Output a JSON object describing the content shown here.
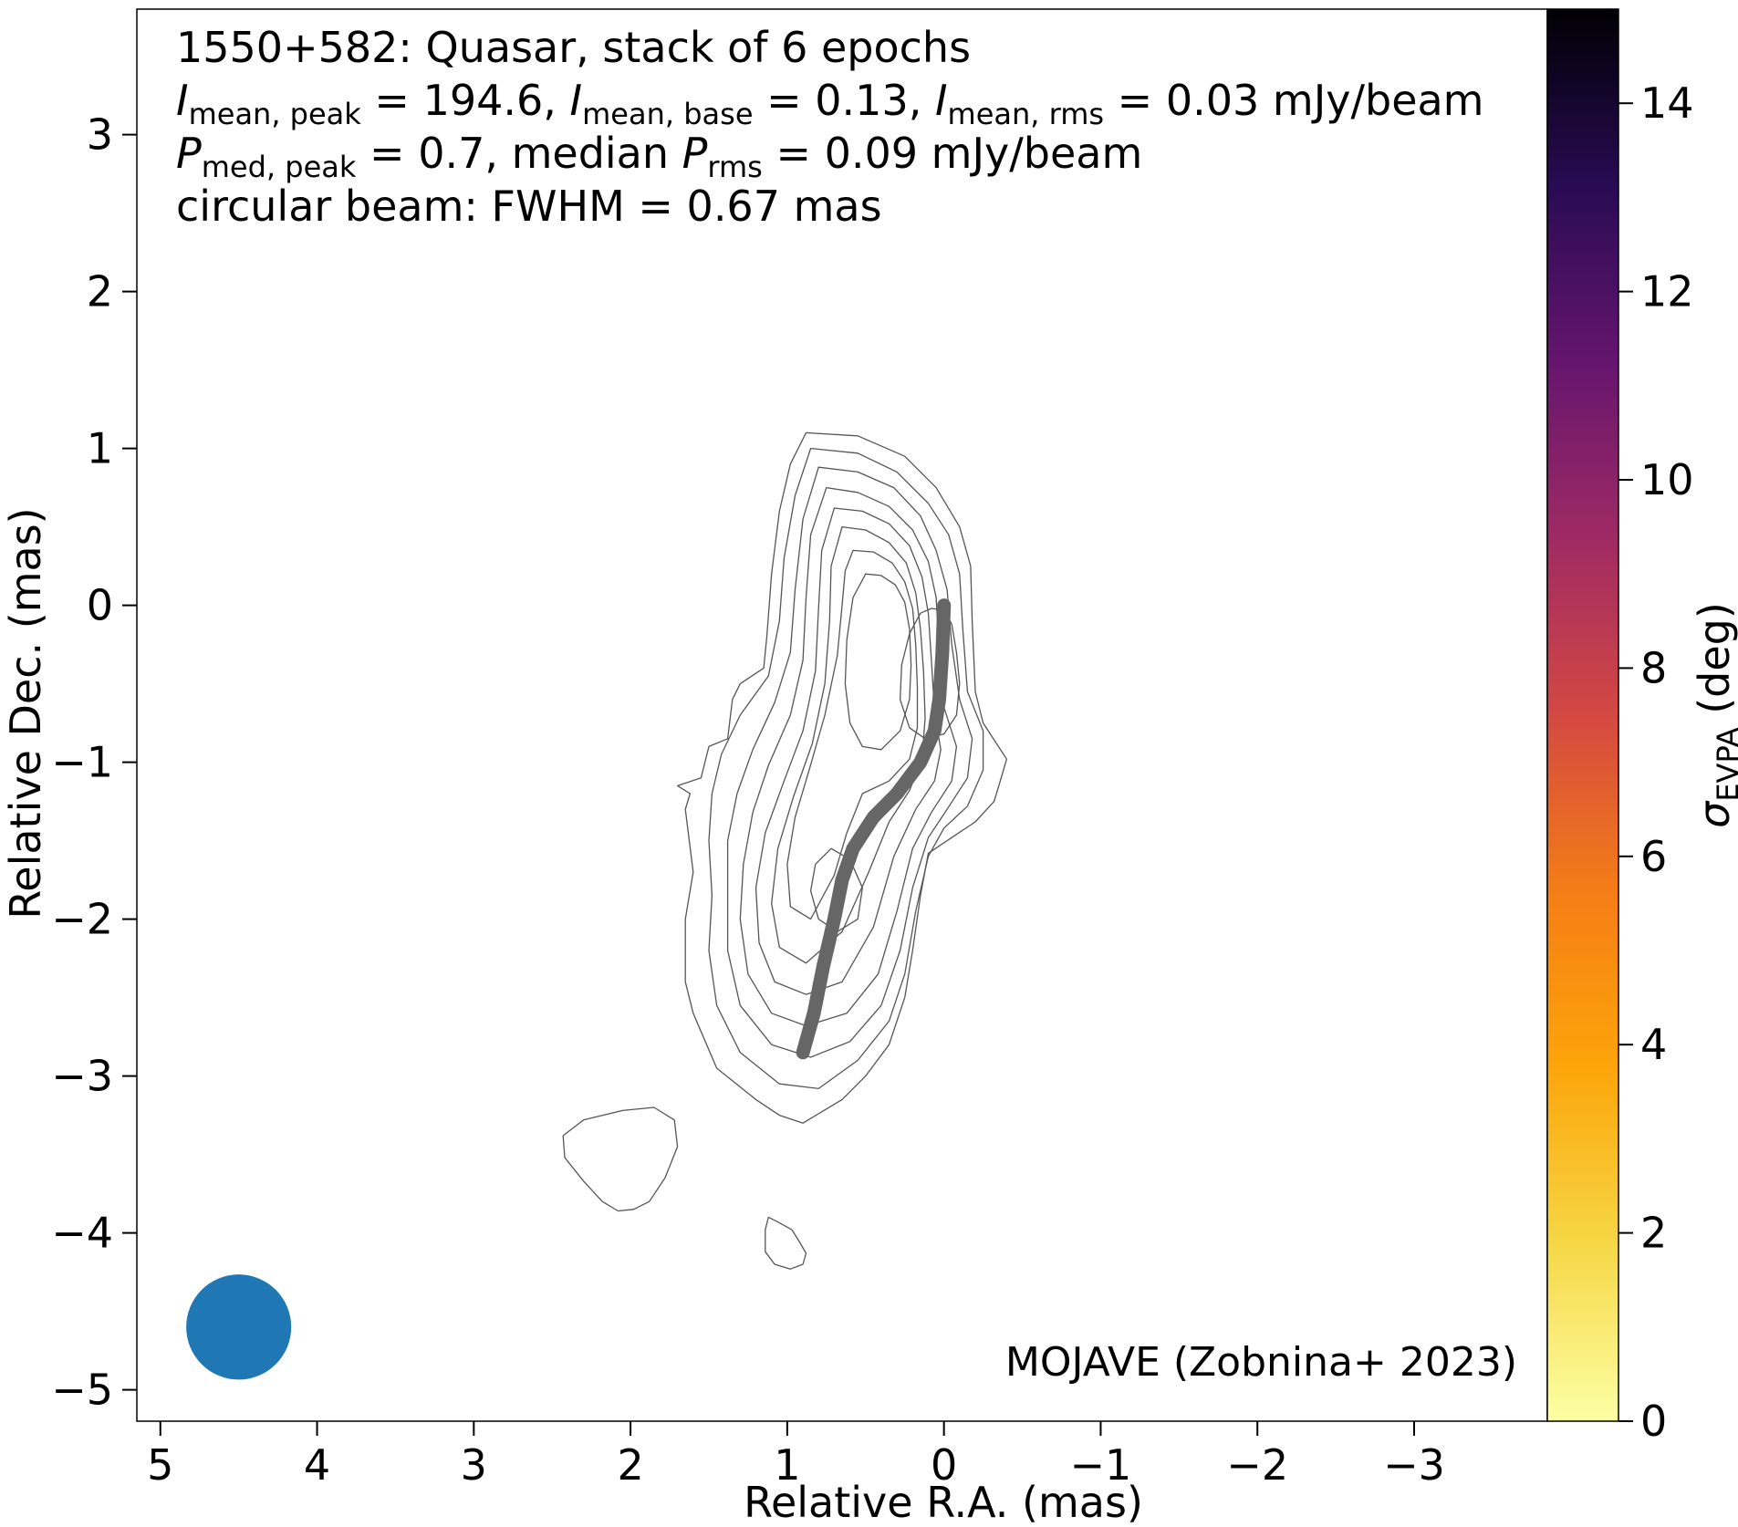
{
  "chart_data": {
    "type": "contour",
    "xlabel": "Relative R.A. (mas)",
    "ylabel": "Relative Dec. (mas)",
    "xlim": [
      5.15,
      -3.85
    ],
    "ylim": [
      -5.2,
      3.8
    ],
    "xticks": [
      5,
      4,
      3,
      2,
      1,
      0,
      -1,
      -2,
      -3
    ],
    "yticks": [
      3,
      2,
      1,
      0,
      -1,
      -2,
      -3,
      -4,
      -5
    ],
    "xtick_labels": [
      "5",
      "4",
      "3",
      "2",
      "1",
      "0",
      "−1",
      "−2",
      "−3"
    ],
    "ytick_labels": [
      "3",
      "2",
      "1",
      "0",
      "−1",
      "−2",
      "−3",
      "−4",
      "−5"
    ],
    "info": {
      "line1": "1550+582: Quasar, stack of 6 epochs",
      "i_sym": "I",
      "i_peak_sub": "mean, peak",
      "i_peak_val": " = 194.6, ",
      "i_base_sub": "mean, base",
      "i_base_val": " = 0.13, ",
      "i_rms_sub": "mean, rms",
      "i_rms_val": " = 0.03 mJy/beam",
      "p_sym": "P",
      "p_peak_sub": "med, peak",
      "p_peak_val": " = 0.7, median ",
      "p_rms_sub": "rms",
      "p_rms_val": " = 0.09 mJy/beam",
      "line4": "circular beam: FWHM = 0.67 mas"
    },
    "credit": "MOJAVE (Zobnina+ 2023)",
    "beam": {
      "center": [
        4.5,
        -4.6
      ],
      "fwhm": 0.67,
      "color": "#1f77b4"
    },
    "ridgeline": {
      "color": "#666666",
      "points": [
        [
          0.0,
          0.0
        ],
        [
          0.01,
          -0.3
        ],
        [
          0.03,
          -0.6
        ],
        [
          0.06,
          -0.8
        ],
        [
          0.15,
          -1.0
        ],
        [
          0.3,
          -1.2
        ],
        [
          0.45,
          -1.35
        ],
        [
          0.58,
          -1.55
        ],
        [
          0.65,
          -1.75
        ],
        [
          0.7,
          -2.0
        ],
        [
          0.77,
          -2.3
        ],
        [
          0.83,
          -2.6
        ],
        [
          0.9,
          -2.85
        ]
      ]
    },
    "contours": [
      [
        [
          0.88,
          1.1
        ],
        [
          0.55,
          1.08
        ],
        [
          0.25,
          0.95
        ],
        [
          0.05,
          0.75
        ],
        [
          -0.1,
          0.5
        ],
        [
          -0.17,
          0.25
        ],
        [
          -0.18,
          -0.1
        ],
        [
          -0.2,
          -0.55
        ],
        [
          -0.25,
          -0.75
        ],
        [
          -0.4,
          -0.98
        ],
        [
          -0.35,
          -1.15
        ],
        [
          -0.32,
          -1.25
        ],
        [
          -0.2,
          -1.38
        ],
        [
          -0.05,
          -1.48
        ],
        [
          0.1,
          -1.58
        ],
        [
          0.15,
          -1.85
        ],
        [
          0.2,
          -2.2
        ],
        [
          0.25,
          -2.5
        ],
        [
          0.35,
          -2.8
        ],
        [
          0.5,
          -3.0
        ],
        [
          0.65,
          -3.15
        ],
        [
          0.9,
          -3.3
        ],
        [
          1.05,
          -3.25
        ],
        [
          1.2,
          -3.15
        ],
        [
          1.45,
          -2.95
        ],
        [
          1.6,
          -2.6
        ],
        [
          1.65,
          -2.4
        ],
        [
          1.65,
          -2.0
        ],
        [
          1.6,
          -1.7
        ],
        [
          1.65,
          -1.3
        ],
        [
          1.62,
          -1.2
        ],
        [
          1.7,
          -1.15
        ],
        [
          1.55,
          -1.1
        ],
        [
          1.5,
          -0.9
        ],
        [
          1.38,
          -0.85
        ],
        [
          1.35,
          -0.6
        ],
        [
          1.3,
          -0.5
        ],
        [
          1.15,
          -0.4
        ],
        [
          1.13,
          -0.2
        ],
        [
          1.1,
          0.2
        ],
        [
          1.05,
          0.6
        ],
        [
          0.98,
          0.9
        ]
      ],
      [
        [
          0.85,
          1.0
        ],
        [
          0.55,
          0.97
        ],
        [
          0.3,
          0.85
        ],
        [
          0.1,
          0.65
        ],
        [
          -0.03,
          0.45
        ],
        [
          -0.1,
          0.2
        ],
        [
          -0.12,
          -0.15
        ],
        [
          -0.15,
          -0.55
        ],
        [
          -0.25,
          -0.8
        ],
        [
          -0.25,
          -1.05
        ],
        [
          -0.15,
          -1.28
        ],
        [
          0.0,
          -1.42
        ],
        [
          0.1,
          -1.6
        ],
        [
          0.18,
          -1.95
        ],
        [
          0.25,
          -2.35
        ],
        [
          0.35,
          -2.65
        ],
        [
          0.55,
          -2.9
        ],
        [
          0.8,
          -3.08
        ],
        [
          1.05,
          -3.05
        ],
        [
          1.3,
          -2.85
        ],
        [
          1.45,
          -2.55
        ],
        [
          1.5,
          -2.2
        ],
        [
          1.48,
          -1.85
        ],
        [
          1.5,
          -1.5
        ],
        [
          1.48,
          -1.2
        ],
        [
          1.42,
          -0.95
        ],
        [
          1.3,
          -0.7
        ],
        [
          1.12,
          -0.45
        ],
        [
          1.05,
          -0.1
        ],
        [
          1.02,
          0.3
        ],
        [
          0.95,
          0.7
        ]
      ],
      [
        [
          0.8,
          0.88
        ],
        [
          0.55,
          0.85
        ],
        [
          0.32,
          0.75
        ],
        [
          0.15,
          0.57
        ],
        [
          0.05,
          0.35
        ],
        [
          -0.02,
          0.1
        ],
        [
          -0.05,
          -0.25
        ],
        [
          -0.1,
          -0.6
        ],
        [
          -0.18,
          -0.85
        ],
        [
          -0.15,
          -1.1
        ],
        [
          -0.02,
          -1.3
        ],
        [
          0.1,
          -1.48
        ],
        [
          0.2,
          -1.8
        ],
        [
          0.28,
          -2.2
        ],
        [
          0.4,
          -2.55
        ],
        [
          0.6,
          -2.78
        ],
        [
          0.85,
          -2.88
        ],
        [
          1.1,
          -2.8
        ],
        [
          1.3,
          -2.55
        ],
        [
          1.38,
          -2.2
        ],
        [
          1.38,
          -1.85
        ],
        [
          1.38,
          -1.5
        ],
        [
          1.32,
          -1.2
        ],
        [
          1.22,
          -0.92
        ],
        [
          1.08,
          -0.62
        ],
        [
          0.98,
          -0.3
        ],
        [
          0.95,
          0.1
        ],
        [
          0.9,
          0.55
        ]
      ],
      [
        [
          0.75,
          0.75
        ],
        [
          0.55,
          0.72
        ],
        [
          0.35,
          0.63
        ],
        [
          0.2,
          0.48
        ],
        [
          0.1,
          0.28
        ],
        [
          0.05,
          0.05
        ],
        [
          0.03,
          -0.3
        ],
        [
          0.0,
          -0.65
        ],
        [
          -0.08,
          -0.9
        ],
        [
          -0.05,
          -1.12
        ],
        [
          0.08,
          -1.32
        ],
        [
          0.2,
          -1.55
        ],
        [
          0.3,
          -1.95
        ],
        [
          0.42,
          -2.35
        ],
        [
          0.62,
          -2.6
        ],
        [
          0.88,
          -2.68
        ],
        [
          1.1,
          -2.6
        ],
        [
          1.25,
          -2.35
        ],
        [
          1.3,
          -2.0
        ],
        [
          1.28,
          -1.65
        ],
        [
          1.22,
          -1.32
        ],
        [
          1.12,
          -1.02
        ],
        [
          0.98,
          -0.7
        ],
        [
          0.9,
          -0.35
        ],
        [
          0.88,
          0.05
        ],
        [
          0.85,
          0.45
        ]
      ],
      [
        [
          0.7,
          0.62
        ],
        [
          0.52,
          0.6
        ],
        [
          0.35,
          0.52
        ],
        [
          0.22,
          0.38
        ],
        [
          0.14,
          0.18
        ],
        [
          0.1,
          -0.05
        ],
        [
          0.08,
          -0.35
        ],
        [
          0.06,
          -0.68
        ],
        [
          0.02,
          -0.92
        ],
        [
          0.06,
          -1.12
        ],
        [
          0.18,
          -1.3
        ],
        [
          0.32,
          -1.6
        ],
        [
          0.45,
          -2.05
        ],
        [
          0.65,
          -2.4
        ],
        [
          0.88,
          -2.48
        ],
        [
          1.08,
          -2.4
        ],
        [
          1.18,
          -2.15
        ],
        [
          1.2,
          -1.8
        ],
        [
          1.14,
          -1.45
        ],
        [
          1.02,
          -1.12
        ],
        [
          0.9,
          -0.8
        ],
        [
          0.82,
          -0.42
        ],
        [
          0.8,
          -0.02
        ],
        [
          0.78,
          0.35
        ]
      ],
      [
        [
          0.65,
          0.5
        ],
        [
          0.5,
          0.48
        ],
        [
          0.35,
          0.4
        ],
        [
          0.24,
          0.27
        ],
        [
          0.18,
          0.08
        ],
        [
          0.15,
          -0.15
        ],
        [
          0.13,
          -0.42
        ],
        [
          0.12,
          -0.72
        ],
        [
          0.14,
          -0.98
        ],
        [
          0.22,
          -1.18
        ],
        [
          0.35,
          -1.38
        ],
        [
          0.48,
          -1.7
        ],
        [
          0.65,
          -2.08
        ],
        [
          0.88,
          -2.28
        ],
        [
          1.05,
          -2.18
        ],
        [
          1.1,
          -1.9
        ],
        [
          1.06,
          -1.55
        ],
        [
          0.96,
          -1.22
        ],
        [
          0.84,
          -0.88
        ],
        [
          0.76,
          -0.5
        ],
        [
          0.73,
          -0.1
        ],
        [
          0.72,
          0.25
        ]
      ],
      [
        [
          0.58,
          0.35
        ],
        [
          0.45,
          0.34
        ],
        [
          0.33,
          0.27
        ],
        [
          0.25,
          0.15
        ],
        [
          0.2,
          -0.02
        ],
        [
          0.18,
          -0.25
        ],
        [
          0.17,
          -0.52
        ],
        [
          0.17,
          -0.78
        ],
        [
          0.22,
          -0.98
        ],
        [
          0.35,
          -1.12
        ],
        [
          0.52,
          -1.2
        ],
        [
          0.62,
          -1.45
        ],
        [
          0.7,
          -1.72
        ],
        [
          0.85,
          -2.0
        ],
        [
          0.98,
          -1.92
        ],
        [
          1.0,
          -1.65
        ],
        [
          0.95,
          -1.35
        ],
        [
          0.86,
          -1.05
        ],
        [
          0.76,
          -0.7
        ],
        [
          0.68,
          -0.32
        ],
        [
          0.65,
          0.0
        ],
        [
          0.63,
          0.22
        ]
      ],
      [
        [
          0.5,
          0.2
        ],
        [
          0.4,
          0.19
        ],
        [
          0.31,
          0.13
        ],
        [
          0.25,
          0.02
        ],
        [
          0.22,
          -0.15
        ],
        [
          0.21,
          -0.38
        ],
        [
          0.22,
          -0.6
        ],
        [
          0.28,
          -0.8
        ],
        [
          0.4,
          -0.92
        ],
        [
          0.52,
          -0.9
        ],
        [
          0.6,
          -0.75
        ],
        [
          0.63,
          -0.5
        ],
        [
          0.62,
          -0.22
        ],
        [
          0.58,
          0.05
        ]
      ],
      [
        [
          0.08,
          -0.02
        ],
        [
          0.0,
          -0.03
        ],
        [
          -0.05,
          -0.12
        ],
        [
          -0.08,
          -0.3
        ],
        [
          -0.1,
          -0.5
        ],
        [
          -0.08,
          -0.7
        ],
        [
          0.0,
          -0.82
        ],
        [
          0.12,
          -0.85
        ],
        [
          0.22,
          -0.78
        ],
        [
          0.28,
          -0.6
        ],
        [
          0.27,
          -0.38
        ],
        [
          0.22,
          -0.18
        ],
        [
          0.15,
          -0.05
        ]
      ],
      [
        [
          0.72,
          -1.55
        ],
        [
          0.6,
          -1.62
        ],
        [
          0.52,
          -1.8
        ],
        [
          0.55,
          -2.0
        ],
        [
          0.68,
          -2.08
        ],
        [
          0.8,
          -2.0
        ],
        [
          0.85,
          -1.82
        ],
        [
          0.82,
          -1.65
        ]
      ],
      [
        [
          2.3,
          -3.28
        ],
        [
          2.05,
          -3.22
        ],
        [
          1.85,
          -3.2
        ],
        [
          1.72,
          -3.28
        ],
        [
          1.7,
          -3.45
        ],
        [
          1.78,
          -3.65
        ],
        [
          1.88,
          -3.8
        ],
        [
          1.98,
          -3.85
        ],
        [
          2.08,
          -3.86
        ],
        [
          2.18,
          -3.8
        ],
        [
          2.3,
          -3.67
        ],
        [
          2.42,
          -3.52
        ],
        [
          2.43,
          -3.38
        ]
      ],
      [
        [
          0.92,
          -4.06
        ],
        [
          0.97,
          -3.98
        ],
        [
          1.06,
          -3.93
        ],
        [
          1.12,
          -3.9
        ],
        [
          1.14,
          -3.98
        ],
        [
          1.14,
          -4.12
        ],
        [
          1.08,
          -4.2
        ],
        [
          0.98,
          -4.23
        ],
        [
          0.9,
          -4.2
        ],
        [
          0.88,
          -4.13
        ]
      ]
    ],
    "colorbar": {
      "label_sym": "σ",
      "label_sub": "EVPA",
      "label_unit": " (deg)",
      "range": [
        0,
        15
      ],
      "ticks": [
        0,
        2,
        4,
        6,
        8,
        10,
        12,
        14
      ],
      "tick_labels": [
        "0",
        "2",
        "4",
        "6",
        "8",
        "10",
        "12",
        "14"
      ],
      "colormap": "inferno_r",
      "stops": [
        "#fcffa4",
        "#f6d746",
        "#fca50a",
        "#f57d15",
        "#d44842",
        "#9f2a63",
        "#65156e",
        "#280b53",
        "#000004"
      ]
    }
  }
}
